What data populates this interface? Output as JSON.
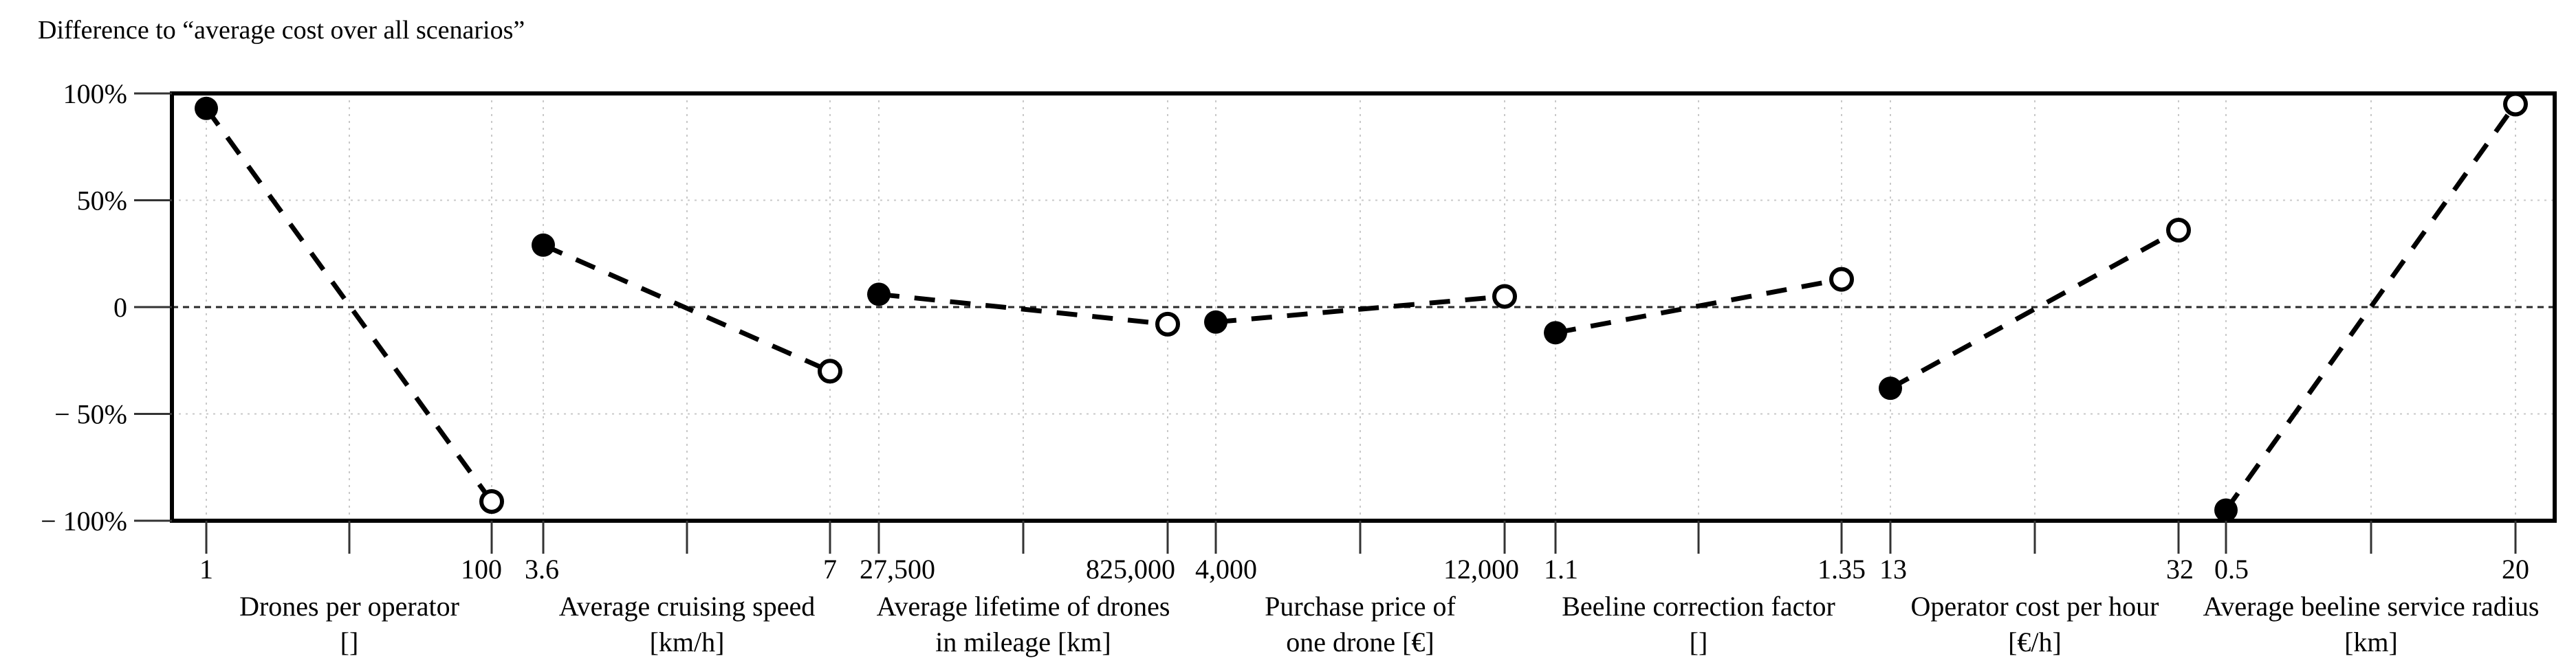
{
  "title": "Difference to “average cost over all scenarios”",
  "colors": {
    "ink": "#000000",
    "grid": "#c9c9c9",
    "zero_line": "#2a2a2a",
    "background": "#ffffff"
  },
  "y_axis": {
    "tick_labels": [
      "100%",
      "50%",
      "0",
      "− 50%",
      "− 100%"
    ],
    "tick_values": [
      100,
      50,
      0,
      -50,
      -100
    ]
  },
  "chart_data": {
    "type": "line",
    "title": "Difference to “average cost over all scenarios”",
    "ylabel": "Difference to average cost over all scenarios (%)",
    "ylim": [
      -100,
      100
    ],
    "grid": true,
    "marker_styles": {
      "low": "filled-circle",
      "high": "open-circle"
    },
    "line_style": "dashed",
    "panels": [
      {
        "parameter": "Drones per operator",
        "label_lines": [
          "Drones per operator",
          "[]"
        ],
        "low_tick": "1",
        "high_tick": "100",
        "low_value_pct": 93,
        "high_value_pct": -91
      },
      {
        "parameter": "Average cruising speed",
        "label_lines": [
          "Average cruising speed",
          "[km/h]"
        ],
        "low_tick": "3.6",
        "high_tick": "7",
        "low_value_pct": 29,
        "high_value_pct": -30
      },
      {
        "parameter": "Average lifetime of drones in mileage",
        "label_lines": [
          "Average lifetime of drones",
          "in mileage [km]"
        ],
        "low_tick": "27,500",
        "high_tick": "825,000",
        "low_value_pct": 6,
        "high_value_pct": -8
      },
      {
        "parameter": "Purchase price of one drone",
        "label_lines": [
          "Purchase price of",
          "one drone [€]"
        ],
        "low_tick": "4,000",
        "high_tick": "12,000",
        "low_value_pct": -7,
        "high_value_pct": 5
      },
      {
        "parameter": "Beeline correction factor",
        "label_lines": [
          "Beeline correction factor",
          "[]"
        ],
        "low_tick": "1.1",
        "high_tick": "1.35",
        "low_value_pct": -12,
        "high_value_pct": 13
      },
      {
        "parameter": "Operator cost per hour",
        "label_lines": [
          "Operator cost per hour",
          "[€/h]"
        ],
        "low_tick": "13",
        "high_tick": "32",
        "low_value_pct": -38,
        "high_value_pct": 36
      },
      {
        "parameter": "Average beeline service radius",
        "label_lines": [
          "Average beeline service radius",
          "[km]"
        ],
        "low_tick": "0.5",
        "high_tick": "20",
        "low_value_pct": -95,
        "high_value_pct": 95
      }
    ]
  }
}
